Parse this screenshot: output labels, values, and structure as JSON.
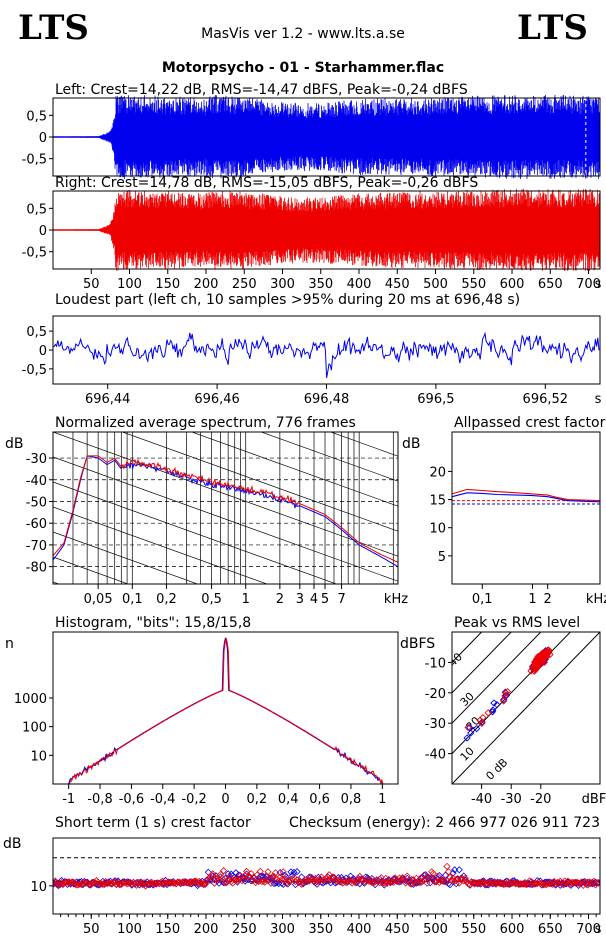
{
  "header": {
    "logo_left": "LTS",
    "logo_right": "LTS",
    "app_title": "MasVis ver 1.2 - www.lts.a.se",
    "file_title": "Motorpsycho - 01 - Starhammer.flac"
  },
  "colors": {
    "left": "#0000ee",
    "right": "#ee0000",
    "grid": "#000000",
    "frame": "#000000"
  },
  "chart_data": [
    {
      "id": "left_wave",
      "type": "area",
      "title": "Left: Crest=14,22 dB, RMS=-14,47 dBFS, Peak=-0,24 dBFS",
      "ytick_labels": [
        "0,5",
        "0",
        "-0,5"
      ],
      "yticks": [
        0.5,
        0,
        -0.5
      ],
      "ylim": [
        -0.9,
        0.9
      ],
      "xlim": [
        0,
        715
      ],
      "envelope": {
        "t": [
          0,
          60,
          75,
          80,
          82,
          100,
          150,
          200,
          210,
          250,
          300,
          350,
          400,
          450,
          500,
          550,
          600,
          650,
          700,
          715
        ],
        "peak": [
          0.01,
          0.02,
          0.15,
          0.5,
          0.97,
          0.97,
          0.95,
          0.9,
          0.97,
          0.93,
          0.8,
          0.78,
          0.88,
          0.9,
          0.92,
          0.95,
          0.97,
          0.97,
          0.97,
          0.97
        ]
      },
      "marker_time": 696.48
    },
    {
      "id": "right_wave",
      "type": "area",
      "title": "Right: Crest=14,78 dB, RMS=-15,05 dBFS, Peak=-0,26 dBFS",
      "ytick_labels": [
        "0,5",
        "0",
        "-0,5"
      ],
      "yticks": [
        0.5,
        0,
        -0.5
      ],
      "ylim": [
        -0.9,
        0.9
      ],
      "xlim": [
        0,
        715
      ],
      "xticks": [
        50,
        100,
        150,
        200,
        250,
        300,
        350,
        400,
        450,
        500,
        550,
        600,
        650,
        700
      ],
      "xtick_labels": [
        "50",
        "100",
        "150",
        "200",
        "250",
        "300",
        "350",
        "400",
        "450",
        "500",
        "550",
        "600",
        "650",
        "700"
      ],
      "xunit": "s",
      "envelope": {
        "t": [
          0,
          60,
          75,
          80,
          82,
          100,
          150,
          200,
          210,
          250,
          300,
          350,
          400,
          450,
          500,
          550,
          600,
          650,
          700,
          715
        ],
        "peak": [
          0.01,
          0.02,
          0.15,
          0.5,
          0.94,
          0.93,
          0.9,
          0.85,
          0.93,
          0.9,
          0.78,
          0.76,
          0.85,
          0.88,
          0.9,
          0.93,
          0.95,
          0.95,
          0.95,
          0.95
        ]
      }
    },
    {
      "id": "loudest",
      "type": "line",
      "title": "Loudest part (left  ch, 10 samples >95% during 20 ms at 696,48 s)",
      "ytick_labels": [
        "0,5",
        "0",
        "-0,5"
      ],
      "yticks": [
        0.5,
        0,
        -0.5
      ],
      "ylim": [
        -0.9,
        0.9
      ],
      "xlim": [
        696.43,
        696.53
      ],
      "xticks": [
        696.44,
        696.46,
        696.48,
        696.5,
        696.52
      ],
      "xtick_labels": [
        "696,44",
        "696,46",
        "696,48",
        "696,5",
        "696,52"
      ],
      "xunit": "s"
    },
    {
      "id": "spectrum",
      "type": "line",
      "title": "Normalized average spectrum, 776 frames",
      "yunit": "dB",
      "ytick_labels": [
        "-30",
        "-40",
        "-50",
        "-60",
        "-70",
        "-80"
      ],
      "yticks": [
        -30,
        -40,
        -50,
        -60,
        -70,
        -80
      ],
      "ylim": [
        -88,
        -18
      ],
      "xscale": "log",
      "xlim": [
        0.02,
        22
      ],
      "xticks": [
        0.05,
        0.1,
        0.2,
        0.5,
        1,
        2,
        3,
        4,
        5,
        7
      ],
      "xtick_labels": [
        "0,05",
        "0,1",
        "0,2",
        "0,5",
        "1",
        "2",
        "3",
        "4",
        "5",
        "7"
      ],
      "xunit": "kHz",
      "series": [
        {
          "x": [
            0.02,
            0.025,
            0.03,
            0.035,
            0.04,
            0.05,
            0.06,
            0.07,
            0.08,
            0.1,
            0.15,
            0.2,
            0.3,
            0.5,
            1,
            2,
            3,
            5,
            7,
            10,
            15,
            22
          ],
          "y": [
            -77,
            -70,
            -55,
            -40,
            -29,
            -30,
            -33,
            -31,
            -35,
            -33,
            -34,
            -36,
            -39,
            -42,
            -45,
            -49,
            -52,
            -57,
            -63,
            -70,
            -75,
            -80
          ]
        },
        {
          "x": [
            0.02,
            0.025,
            0.03,
            0.035,
            0.04,
            0.05,
            0.06,
            0.07,
            0.08,
            0.1,
            0.15,
            0.2,
            0.3,
            0.5,
            1,
            2,
            3,
            5,
            7,
            10,
            15,
            22
          ],
          "y": [
            -75,
            -69,
            -54,
            -39,
            -29,
            -29,
            -32,
            -30,
            -34,
            -32,
            -33,
            -35,
            -38,
            -41,
            -44,
            -48,
            -51,
            -56,
            -62,
            -69,
            -74,
            -78
          ]
        }
      ]
    },
    {
      "id": "allpass",
      "type": "line",
      "title": "Allpassed crest factor",
      "yunit": "dB",
      "ytick_labels": [
        "20",
        "15",
        "10",
        "5"
      ],
      "yticks": [
        20,
        15,
        10,
        5
      ],
      "ylim": [
        0,
        27
      ],
      "xscale": "log",
      "xlim": [
        0.025,
        22
      ],
      "xticks": [
        0.1,
        1,
        2
      ],
      "xtick_labels": [
        "0,1",
        "1",
        "2"
      ],
      "xunit": "kHz",
      "series": [
        {
          "x": [
            0.025,
            0.05,
            0.1,
            0.2,
            0.5,
            1,
            2,
            3,
            5,
            10,
            22
          ],
          "y": [
            15.5,
            16.2,
            16.1,
            15.9,
            15.8,
            15.7,
            15.5,
            15.2,
            14.8,
            14.7,
            14.6
          ]
        },
        {
          "x": [
            0.025,
            0.05,
            0.1,
            0.2,
            0.5,
            1,
            2,
            3,
            5,
            10,
            22
          ],
          "y": [
            16.0,
            16.8,
            16.6,
            16.4,
            16.2,
            16.0,
            15.8,
            15.4,
            15.0,
            14.9,
            14.8
          ]
        }
      ],
      "ref_lines": [
        14.2,
        14.8
      ]
    },
    {
      "id": "histogram",
      "type": "line",
      "title": "Histogram, \"bits\": 15,8/15,8",
      "yunit": "n",
      "yscale": "log",
      "ytick_labels": [
        "1000",
        "100",
        "10"
      ],
      "yticks": [
        1000,
        100,
        10
      ],
      "ylim": [
        1,
        200000
      ],
      "xlim": [
        -1.1,
        1.1
      ],
      "xticks": [
        -1,
        -0.8,
        -0.6,
        -0.4,
        -0.2,
        0,
        0.2,
        0.4,
        0.6,
        0.8,
        1
      ],
      "xtick_labels": [
        "-1",
        "-0,8",
        "-0,6",
        "-0,4",
        "-0,2",
        "0",
        "0,2",
        "0,4",
        "0,6",
        "0,8",
        "1"
      ]
    },
    {
      "id": "peak_vs_rms",
      "type": "scatter",
      "title": "Peak vs RMS level",
      "yunit": "dBFS",
      "ytick_labels": [
        "-10",
        "-20",
        "-30",
        "-40"
      ],
      "yticks": [
        -10,
        -20,
        -30,
        -40
      ],
      "ylim": [
        -50,
        0
      ],
      "xlim": [
        -50,
        0
      ],
      "xticks": [
        -40,
        -30,
        -20
      ],
      "xtick_labels": [
        "-40",
        "-30",
        "-20"
      ],
      "xunit": "dBFS",
      "diag_labels": [
        "40",
        "30",
        "20",
        "10",
        "0 dB"
      ]
    },
    {
      "id": "short_crest",
      "type": "scatter",
      "title": "Short term (1 s) crest factor",
      "annotation": "Checksum (energy):  2 466 977 026 911 723",
      "yunit": "dB",
      "ytick_labels": [
        "10"
      ],
      "yticks": [
        10
      ],
      "ylim": [
        0,
        27
      ],
      "xlim": [
        0,
        715
      ],
      "xticks": [
        50,
        100,
        150,
        200,
        250,
        300,
        350,
        400,
        450,
        500,
        550,
        600,
        650,
        700
      ],
      "xtick_labels": [
        "50",
        "100",
        "150",
        "200",
        "250",
        "300",
        "350",
        "400",
        "450",
        "500",
        "550",
        "600",
        "650",
        "700"
      ],
      "xunit": "s",
      "ref_lines": [
        11.5,
        20
      ]
    }
  ]
}
